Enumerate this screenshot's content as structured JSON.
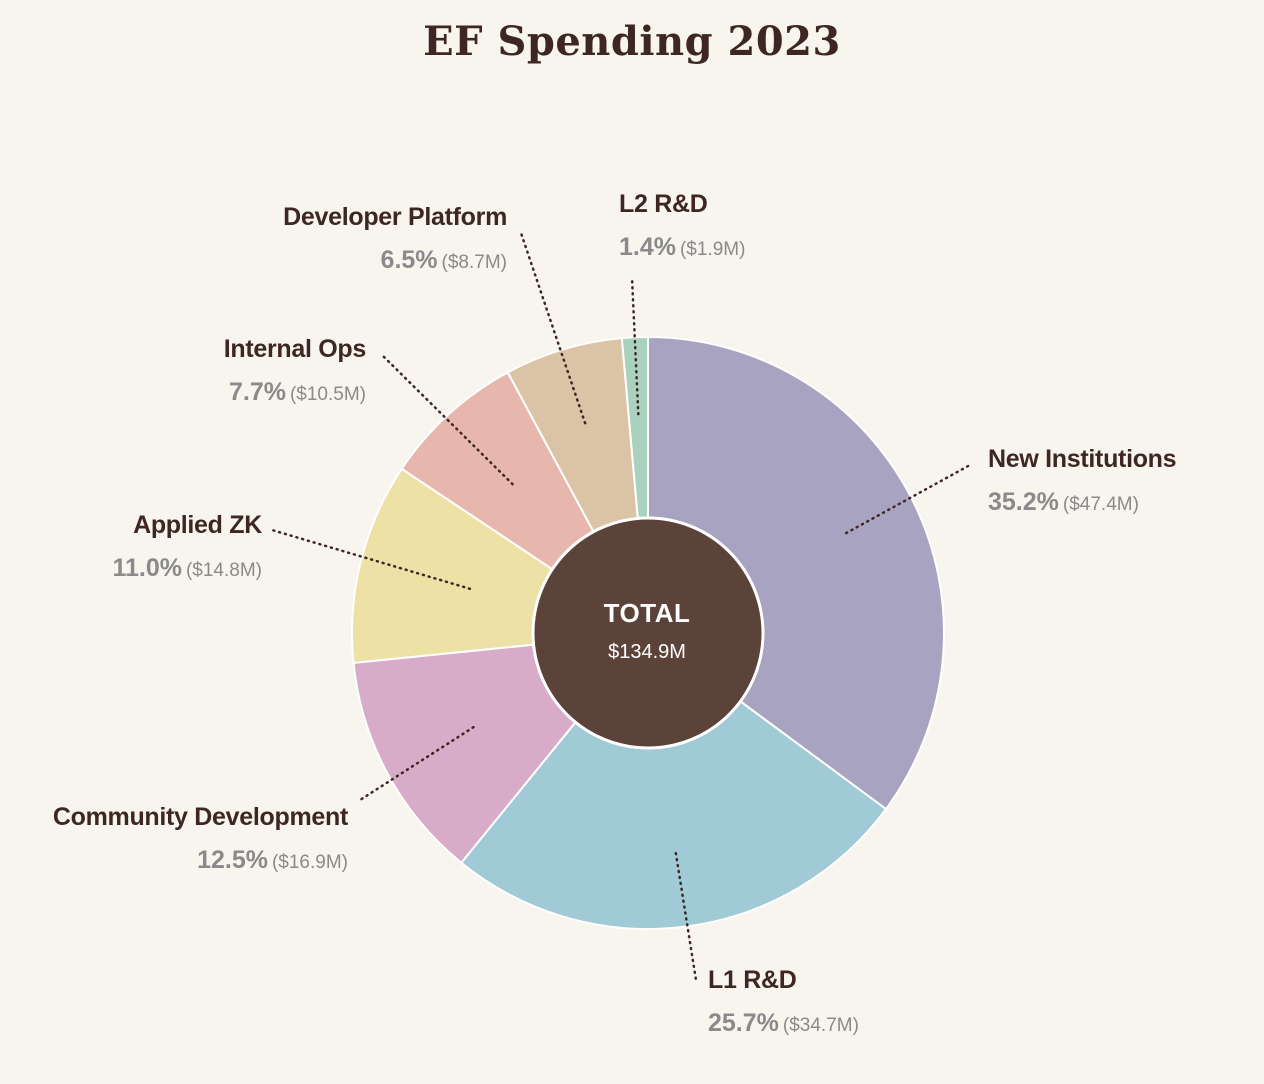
{
  "chart_data": {
    "type": "pie",
    "title": "EF Spending 2023",
    "center_label": "TOTAL",
    "center_value": "$134.9M",
    "slices": [
      {
        "label": "New Institutions",
        "percent_text": "35.2%",
        "amount_text": "($47.4M)",
        "value": 47.4,
        "color": "#a8a3c1"
      },
      {
        "label": "L1 R&D",
        "percent_text": "25.7%",
        "amount_text": "($34.7M)",
        "value": 34.7,
        "color": "#a0cad6"
      },
      {
        "label": "Community Development",
        "percent_text": "12.5%",
        "amount_text": "($16.9M)",
        "value": 16.9,
        "color": "#d8abc8"
      },
      {
        "label": "Applied ZK",
        "percent_text": "11.0%",
        "amount_text": "($14.8M)",
        "value": 14.8,
        "color": "#ede1a5"
      },
      {
        "label": "Internal Ops",
        "percent_text": "7.7%",
        "amount_text": "($10.5M)",
        "value": 10.5,
        "color": "#e7b7ae"
      },
      {
        "label": "Developer Platform",
        "percent_text": "6.5%",
        "amount_text": "($8.7M)",
        "value": 8.7,
        "color": "#dbc4a6"
      },
      {
        "label": "L2 R&D",
        "percent_text": "1.4%",
        "amount_text": "($1.9M)",
        "value": 1.9,
        "color": "#a9d1bd"
      }
    ]
  },
  "colors": {
    "background": "#f8f5ef",
    "center_fill": "#5c4339",
    "title_color": "#3e2723",
    "label_dark": "#3e2723",
    "label_gray": "#8a8a8a"
  }
}
